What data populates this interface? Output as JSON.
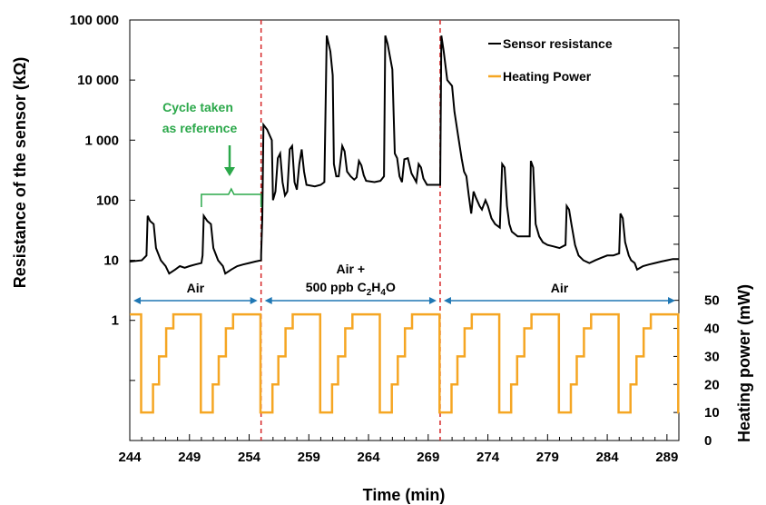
{
  "chart_data": {
    "type": "line",
    "xlabel": "Time (min)",
    "ylabel_left": "Resistance of the sensor (kΩ)",
    "ylabel_right": "Heating power (mW)",
    "x_ticks": [
      244,
      249,
      254,
      259,
      264,
      269,
      274,
      279,
      284,
      289
    ],
    "xlim": [
      244,
      290
    ],
    "ylim_left": [
      0.01,
      100000
    ],
    "y_left_scale": "log",
    "y_left_tick_labels": [
      "1",
      "10",
      "100",
      "1 000",
      "10 000",
      "100 000"
    ],
    "y_left_tick_values": [
      1,
      10,
      100,
      1000,
      10000,
      100000
    ],
    "ylim_right": [
      0,
      150
    ],
    "y_right_ticks": [
      0,
      10,
      20,
      30,
      40,
      50
    ],
    "grid": false,
    "legend_position": "top-right",
    "series": [
      {
        "name": "Sensor resistance",
        "color": "#000000",
        "axis": "left",
        "points": [
          [
            244,
            9.5
          ],
          [
            245,
            10
          ],
          [
            245.4,
            12
          ],
          [
            245.5,
            55
          ],
          [
            245.7,
            45
          ],
          [
            246,
            40
          ],
          [
            246.2,
            16
          ],
          [
            246.6,
            10
          ],
          [
            247,
            8
          ],
          [
            247.3,
            6
          ],
          [
            247.8,
            7
          ],
          [
            248.2,
            8
          ],
          [
            248.6,
            7.5
          ],
          [
            249,
            8
          ],
          [
            249.5,
            8.5
          ],
          [
            250,
            9
          ],
          [
            250.1,
            12
          ],
          [
            250.2,
            55
          ],
          [
            250.5,
            45
          ],
          [
            250.8,
            40
          ],
          [
            251,
            16
          ],
          [
            251.4,
            10
          ],
          [
            251.8,
            8
          ],
          [
            252,
            6
          ],
          [
            252.5,
            7
          ],
          [
            253,
            8
          ],
          [
            253.5,
            8.5
          ],
          [
            254,
            9
          ],
          [
            254.5,
            9.5
          ],
          [
            255,
            10
          ],
          [
            255,
            12
          ],
          [
            255.1,
            50
          ],
          [
            255.2,
            1800
          ],
          [
            255.5,
            1500
          ],
          [
            255.9,
            1000
          ],
          [
            256,
            100
          ],
          [
            256.2,
            140
          ],
          [
            256.4,
            500
          ],
          [
            256.6,
            600
          ],
          [
            256.8,
            200
          ],
          [
            257,
            120
          ],
          [
            257.2,
            140
          ],
          [
            257.4,
            700
          ],
          [
            257.6,
            800
          ],
          [
            257.8,
            200
          ],
          [
            258,
            150
          ],
          [
            258.2,
            400
          ],
          [
            258.4,
            700
          ],
          [
            258.6,
            300
          ],
          [
            258.8,
            180
          ],
          [
            259.5,
            170
          ],
          [
            260,
            180
          ],
          [
            260.3,
            200
          ],
          [
            260.5,
            55000
          ],
          [
            260.8,
            30000
          ],
          [
            261,
            12000
          ],
          [
            261.1,
            400
          ],
          [
            261.3,
            250
          ],
          [
            261.5,
            250
          ],
          [
            261.8,
            800
          ],
          [
            262,
            650
          ],
          [
            262.2,
            300
          ],
          [
            262.5,
            250
          ],
          [
            262.8,
            220
          ],
          [
            263,
            240
          ],
          [
            263.2,
            450
          ],
          [
            263.4,
            380
          ],
          [
            263.6,
            260
          ],
          [
            263.8,
            210
          ],
          [
            264.5,
            200
          ],
          [
            265,
            210
          ],
          [
            265.3,
            250
          ],
          [
            265.4,
            55000
          ],
          [
            265.6,
            40000
          ],
          [
            266,
            15000
          ],
          [
            266.2,
            600
          ],
          [
            266.4,
            500
          ],
          [
            266.6,
            250
          ],
          [
            266.8,
            200
          ],
          [
            267,
            480
          ],
          [
            267.3,
            500
          ],
          [
            267.6,
            280
          ],
          [
            268,
            200
          ],
          [
            268.2,
            400
          ],
          [
            268.4,
            350
          ],
          [
            268.6,
            230
          ],
          [
            268.9,
            180
          ],
          [
            269.5,
            180
          ],
          [
            270,
            180
          ],
          [
            270.1,
            55000
          ],
          [
            270.3,
            30000
          ],
          [
            270.6,
            10000
          ],
          [
            271,
            8000
          ],
          [
            271.2,
            3000
          ],
          [
            271.5,
            1200
          ],
          [
            271.8,
            500
          ],
          [
            272,
            300
          ],
          [
            272.2,
            250
          ],
          [
            272.4,
            120
          ],
          [
            272.6,
            60
          ],
          [
            272.8,
            140
          ],
          [
            273,
            110
          ],
          [
            273.3,
            80
          ],
          [
            273.5,
            70
          ],
          [
            273.8,
            100
          ],
          [
            274,
            80
          ],
          [
            274.3,
            50
          ],
          [
            274.6,
            40
          ],
          [
            275,
            35
          ],
          [
            275.2,
            400
          ],
          [
            275.4,
            350
          ],
          [
            275.6,
            80
          ],
          [
            275.8,
            40
          ],
          [
            276,
            30
          ],
          [
            276.5,
            25
          ],
          [
            277,
            25
          ],
          [
            277.5,
            25
          ],
          [
            277.6,
            450
          ],
          [
            277.8,
            350
          ],
          [
            278,
            40
          ],
          [
            278.3,
            25
          ],
          [
            278.6,
            20
          ],
          [
            279,
            18
          ],
          [
            279.5,
            17
          ],
          [
            280,
            16
          ],
          [
            280.5,
            18
          ],
          [
            280.6,
            80
          ],
          [
            280.8,
            70
          ],
          [
            281,
            40
          ],
          [
            281.3,
            18
          ],
          [
            281.6,
            12
          ],
          [
            282,
            10
          ],
          [
            282.5,
            9
          ],
          [
            283,
            10
          ],
          [
            283.5,
            11
          ],
          [
            284,
            12
          ],
          [
            284.5,
            12
          ],
          [
            285,
            13
          ],
          [
            285.1,
            60
          ],
          [
            285.3,
            50
          ],
          [
            285.5,
            20
          ],
          [
            285.8,
            12
          ],
          [
            286,
            10
          ],
          [
            286.3,
            9
          ],
          [
            286.5,
            7
          ],
          [
            287,
            8
          ],
          [
            287.5,
            8.5
          ],
          [
            288,
            9
          ],
          [
            288.5,
            9.5
          ],
          [
            289,
            10
          ],
          [
            289.5,
            10.5
          ],
          [
            290,
            10.5
          ]
        ]
      },
      {
        "name": "Heating Power",
        "color": "#F5A623",
        "axis": "right",
        "cycle_start": 244,
        "cycle_period": 5,
        "cycle_levels": [
          [
            0.0,
            45
          ],
          [
            0.95,
            10
          ],
          [
            1.95,
            20
          ],
          [
            2.45,
            30
          ],
          [
            3.05,
            40
          ],
          [
            3.65,
            45
          ]
        ],
        "note_levels_mW": [
          10,
          20,
          30,
          40,
          45
        ]
      }
    ],
    "annotations": [
      {
        "text": "Air",
        "color": "#1F77B4",
        "range": [
          244,
          255
        ]
      },
      {
        "text_line1": "Air +",
        "text_line2_pre": "500 ppb C",
        "sub1": "2",
        "mid": "H",
        "sub2": "4",
        "post": "O",
        "color": "#1F77B4",
        "range": [
          255,
          270
        ]
      },
      {
        "text": "Air",
        "color": "#1F77B4",
        "range": [
          270,
          290
        ]
      }
    ],
    "reference_label_1": "Cycle taken",
    "reference_label_2": "as reference",
    "reference_color": "#2BA84A",
    "reference_range": [
      250,
      255
    ],
    "vertical_markers": [
      255,
      270
    ],
    "vertical_marker_color": "#D62728"
  }
}
